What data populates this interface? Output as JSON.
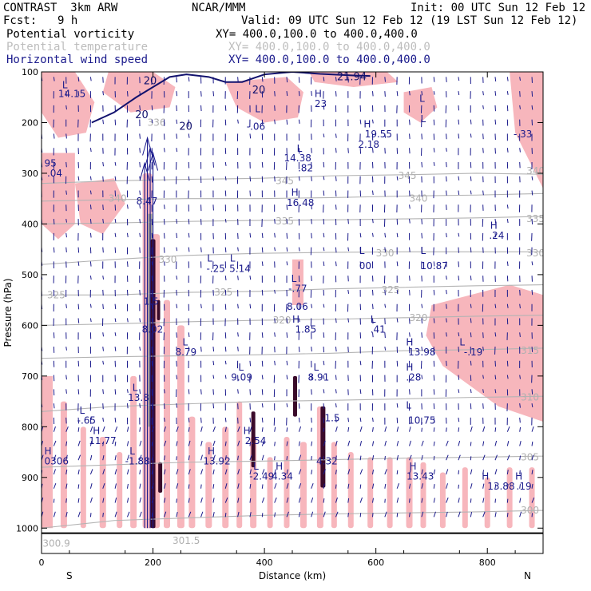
{
  "header": {
    "model": "CONTRAST  3km ARW",
    "org": "NCAR/MMM",
    "init": "Init: 00 UTC Sun 12 Feb 12",
    "fcst_label": "Fcst:",
    "fcst_value": "9 h",
    "valid": "Valid: 09 UTC Sun 12 Feb 12 (19 LST Sun 12 Feb 12)",
    "field1": "Potential vorticity",
    "field1_xy": "XY= 400.0,100.0 to 400.0,400.0",
    "field2": "Potential temperature",
    "field2_xy": "XY= 400.0,100.0 to 400.0,400.0",
    "field3": "Horizontal wind speed",
    "field3_xy": "XY= 400.0,100.0 to 400.0,400.0"
  },
  "colors": {
    "pv_fill": "#f7b6bc",
    "isentrope": "#b4b4b4",
    "wind_contour": "#12126e",
    "vectors": "#1a1a8c",
    "dark_pv": "#3a0a2a"
  },
  "chart_data": {
    "type": "cross-section",
    "title": "Potential vorticity / Potential temperature / Horizontal wind speed",
    "xlabel": "Distance (km)",
    "ylabel": "Pressure (hPa)",
    "xlim": [
      0,
      900
    ],
    "ylim": [
      1050,
      100
    ],
    "x_ticks": [
      0,
      200,
      400,
      600,
      800
    ],
    "x_tick_labels": [
      "0",
      "200",
      "400",
      "600",
      "800"
    ],
    "y_ticks": [
      100,
      200,
      300,
      400,
      500,
      600,
      700,
      800,
      900,
      1000
    ],
    "y_tick_labels": [
      "100",
      "200",
      "300",
      "400",
      "500",
      "600",
      "700",
      "800",
      "900",
      "1000"
    ],
    "left_end": "S",
    "right_end": "N",
    "isentropes": [
      {
        "theta": 345,
        "p": [
          320,
          315,
          312,
          310,
          305,
          303,
          300,
          302
        ]
      },
      {
        "theta": 340,
        "p": [
          355,
          352,
          350,
          350,
          348,
          345,
          343,
          340
        ]
      },
      {
        "theta": 335,
        "p": [
          400,
          398,
          395,
          393,
          392,
          390,
          388,
          385
        ]
      },
      {
        "theta": 330,
        "p": [
          480,
          470,
          462,
          458,
          456,
          455,
          455,
          455
        ]
      },
      {
        "theta": 325,
        "p": [
          540,
          540,
          535,
          533,
          528,
          525,
          522,
          520
        ]
      },
      {
        "theta": 320,
        "p": [
          600,
          597,
          593,
          590,
          588,
          585,
          582,
          580
        ]
      },
      {
        "theta": 315,
        "p": [
          665,
          662,
          660,
          658,
          655,
          650,
          648,
          645
        ]
      },
      {
        "theta": 310,
        "p": [
          770,
          760,
          755,
          750,
          748,
          745,
          742,
          740
        ]
      },
      {
        "theta": 305,
        "p": [
          880,
          875,
          870,
          868,
          865,
          862,
          860,
          858
        ]
      },
      {
        "theta": 300,
        "p": [
          1000,
          985,
          980,
          975,
          972,
          970,
          968,
          965
        ]
      }
    ],
    "isentrope_x": [
      0,
      130,
      260,
      390,
      520,
      650,
      780,
      900
    ],
    "isentrope_labels": [
      {
        "text": "345",
        "x": 420,
        "p": 315
      },
      {
        "text": "345",
        "x": 640,
        "p": 305
      },
      {
        "text": "340",
        "x": 120,
        "p": 350
      },
      {
        "text": "340",
        "x": 660,
        "p": 350
      },
      {
        "text": "340",
        "x": 870,
        "p": 295
      },
      {
        "text": "335",
        "x": 420,
        "p": 395
      },
      {
        "text": "335",
        "x": 870,
        "p": 390
      },
      {
        "text": "330",
        "x": 210,
        "p": 470
      },
      {
        "text": "330",
        "x": 600,
        "p": 458
      },
      {
        "text": "330",
        "x": 870,
        "p": 458
      },
      {
        "text": "325",
        "x": 10,
        "p": 540
      },
      {
        "text": "325",
        "x": 310,
        "p": 535
      },
      {
        "text": "325",
        "x": 610,
        "p": 530
      },
      {
        "text": "320",
        "x": 415,
        "p": 590
      },
      {
        "text": "320",
        "x": 660,
        "p": 585
      },
      {
        "text": "315",
        "x": 860,
        "p": 650
      },
      {
        "text": "310",
        "x": 860,
        "p": 742
      },
      {
        "text": "305",
        "x": 860,
        "p": 860
      },
      {
        "text": "300",
        "x": 860,
        "p": 965
      },
      {
        "text": "336",
        "x": 190,
        "p": 200
      },
      {
        "text": "300.9",
        "x": 2,
        "p": 1030
      },
      {
        "text": "301.5",
        "x": 235,
        "p": 1025
      }
    ],
    "wind_contours": [
      {
        "value": 20,
        "x": [
          90,
          130,
          170,
          200,
          230,
          260,
          300,
          330,
          360,
          400,
          450,
          500,
          560,
          590
        ],
        "p": [
          200,
          180,
          150,
          130,
          110,
          105,
          110,
          120,
          120,
          105,
          100,
          104,
          107,
          108
        ]
      }
    ],
    "wind_labels": [
      {
        "text": "20",
        "x": 183,
        "p": 118
      },
      {
        "text": "20",
        "x": 168,
        "p": 185
      },
      {
        "text": "20",
        "x": 247,
        "p": 208
      },
      {
        "text": "20",
        "x": 378,
        "p": 136
      },
      {
        "text": "21.94",
        "x": 530,
        "p": 110
      }
    ],
    "markers": [
      {
        "text": "L",
        "x": 37,
        "p": 126
      },
      {
        "text": "14.15",
        "x": 30,
        "p": 143
      },
      {
        "text": "H",
        "x": 490,
        "p": 143
      },
      {
        "text": "23",
        "x": 490,
        "p": 163
      },
      {
        "text": "L",
        "x": 383,
        "p": 173
      },
      {
        "text": "L",
        "x": 678,
        "p": 153
      },
      {
        "text": "L",
        "x": 680,
        "p": 193
      },
      {
        "text": "-.06",
        "x": 368,
        "p": 208
      },
      {
        "text": "H",
        "x": 578,
        "p": 203
      },
      {
        "text": "19.55",
        "x": 580,
        "p": 223
      },
      {
        "text": "2.18",
        "x": 568,
        "p": 243
      },
      {
        "text": "-.33",
        "x": 847,
        "p": 223
      },
      {
        "text": "L",
        "x": 458,
        "p": 251
      },
      {
        "text": "14.38",
        "x": 435,
        "p": 270
      },
      {
        "text": ".82",
        "x": 460,
        "p": 290
      },
      {
        "text": "95",
        "x": 5,
        "p": 280
      },
      {
        "text": ".04",
        "x": 10,
        "p": 300
      },
      {
        "text": "H",
        "x": 448,
        "p": 338
      },
      {
        "text": "16.48",
        "x": 440,
        "p": 358
      },
      {
        "text": "8.47",
        "x": 170,
        "p": 355
      },
      {
        "text": "H",
        "x": 805,
        "p": 403
      },
      {
        "text": ".24",
        "x": 803,
        "p": 423
      },
      {
        "text": "L",
        "x": 297,
        "p": 468
      },
      {
        "text": "L",
        "x": 338,
        "p": 468
      },
      {
        "text": "L",
        "x": 570,
        "p": 453
      },
      {
        "text": "L",
        "x": 680,
        "p": 453
      },
      {
        "text": "-.25",
        "x": 296,
        "p": 488
      },
      {
        "text": "5.14",
        "x": 337,
        "p": 488
      },
      {
        "text": "00",
        "x": 570,
        "p": 483
      },
      {
        "text": "10.87",
        "x": 680,
        "p": 483
      },
      {
        "text": "L",
        "x": 448,
        "p": 508
      },
      {
        "text": "-.77",
        "x": 443,
        "p": 528
      },
      {
        "text": "1.5",
        "x": 183,
        "p": 553
      },
      {
        "text": "8.06",
        "x": 440,
        "p": 563
      },
      {
        "text": "H",
        "x": 450,
        "p": 588
      },
      {
        "text": "1.85",
        "x": 455,
        "p": 608
      },
      {
        "text": "L",
        "x": 590,
        "p": 588
      },
      {
        "text": ".41",
        "x": 590,
        "p": 608
      },
      {
        "text": "8.02",
        "x": 180,
        "p": 608
      },
      {
        "text": "L",
        "x": 253,
        "p": 633
      },
      {
        "text": "H",
        "x": 654,
        "p": 633
      },
      {
        "text": "L",
        "x": 750,
        "p": 633
      },
      {
        "text": "8.79",
        "x": 240,
        "p": 653
      },
      {
        "text": "13.98",
        "x": 658,
        "p": 653
      },
      {
        "text": "-.19",
        "x": 758,
        "p": 653
      },
      {
        "text": "L",
        "x": 353,
        "p": 683
      },
      {
        "text": "L",
        "x": 488,
        "p": 683
      },
      {
        "text": "H",
        "x": 654,
        "p": 683
      },
      {
        "text": "9.09",
        "x": 340,
        "p": 703
      },
      {
        "text": "8.91",
        "x": 478,
        "p": 703
      },
      {
        "text": ".28",
        "x": 654,
        "p": 703
      },
      {
        "text": "L",
        "x": 163,
        "p": 723
      },
      {
        "text": "13.8",
        "x": 155,
        "p": 743
      },
      {
        "text": "L",
        "x": 654,
        "p": 758
      },
      {
        "text": "L",
        "x": 68,
        "p": 768
      },
      {
        "text": "1.5",
        "x": 508,
        "p": 783
      },
      {
        "text": "-.65",
        "x": 64,
        "p": 788
      },
      {
        "text": "10.75",
        "x": 658,
        "p": 788
      },
      {
        "text": "H",
        "x": 92,
        "p": 808
      },
      {
        "text": "H",
        "x": 362,
        "p": 808
      },
      {
        "text": "11.77",
        "x": 85,
        "p": 828
      },
      {
        "text": "2.54",
        "x": 365,
        "p": 828
      },
      {
        "text": "L",
        "x": 158,
        "p": 848
      },
      {
        "text": "H",
        "x": 298,
        "p": 848
      },
      {
        "text": "H",
        "x": 5,
        "p": 848
      },
      {
        "text": "-1.88",
        "x": 150,
        "p": 868
      },
      {
        "text": "13.92",
        "x": 290,
        "p": 868
      },
      {
        "text": "0306",
        "x": 5,
        "p": 868
      },
      {
        "text": "4.32",
        "x": 493,
        "p": 868
      },
      {
        "text": "L",
        "x": 380,
        "p": 878
      },
      {
        "text": "H",
        "x": 420,
        "p": 878
      },
      {
        "text": "H",
        "x": 660,
        "p": 878
      },
      {
        "text": "-2.49",
        "x": 373,
        "p": 898
      },
      {
        "text": "4.34",
        "x": 413,
        "p": 898
      },
      {
        "text": "13.43",
        "x": 655,
        "p": 898
      },
      {
        "text": "H",
        "x": 790,
        "p": 898
      },
      {
        "text": "H",
        "x": 850,
        "p": 898
      },
      {
        "text": "13.88",
        "x": 800,
        "p": 918
      },
      {
        "text": ".19",
        "x": 852,
        "p": 918
      }
    ],
    "pv_fill_regions": [
      {
        "x": [
          0,
          60,
          95,
          80,
          30,
          0
        ],
        "p": [
          100,
          100,
          160,
          220,
          230,
          180
        ]
      },
      {
        "x": [
          120,
          200,
          240,
          230,
          160,
          110
        ],
        "p": [
          100,
          100,
          130,
          170,
          180,
          140
        ]
      },
      {
        "x": [
          330,
          440,
          470,
          460,
          400,
          350
        ],
        "p": [
          120,
          110,
          140,
          190,
          200,
          170
        ]
      },
      {
        "x": [
          480,
          620,
          640,
          560,
          490
        ],
        "p": [
          100,
          100,
          120,
          130,
          120
        ]
      },
      {
        "x": [
          650,
          700,
          710,
          680,
          650
        ],
        "p": [
          140,
          130,
          170,
          200,
          180
        ]
      },
      {
        "x": [
          840,
          900,
          900,
          850
        ],
        "p": [
          100,
          100,
          330,
          220
        ]
      },
      {
        "x": [
          0,
          60,
          60,
          30,
          0
        ],
        "p": [
          260,
          260,
          400,
          430,
          400
        ]
      },
      {
        "x": [
          60,
          130,
          150,
          110,
          70
        ],
        "p": [
          320,
          310,
          360,
          420,
          400
        ]
      },
      {
        "x": [
          700,
          840,
          900,
          900,
          820,
          720,
          690
        ],
        "p": [
          560,
          520,
          540,
          790,
          760,
          680,
          620
        ]
      },
      {
        "x": [
          0,
          20,
          20,
          0
        ],
        "p": [
          700,
          700,
          1000,
          1000
        ]
      },
      {
        "x": [
          450,
          470,
          470,
          450
        ],
        "p": [
          470,
          470,
          560,
          560
        ]
      }
    ],
    "pv_columns": [
      {
        "x": 15,
        "p0": 700,
        "p1": 1000,
        "w": 6
      },
      {
        "x": 40,
        "p0": 750,
        "p1": 1000,
        "w": 8
      },
      {
        "x": 75,
        "p0": 800,
        "p1": 1000,
        "w": 7
      },
      {
        "x": 110,
        "p0": 820,
        "p1": 1000,
        "w": 8
      },
      {
        "x": 140,
        "p0": 850,
        "p1": 1000,
        "w": 7
      },
      {
        "x": 165,
        "p0": 700,
        "p1": 1000,
        "w": 8
      },
      {
        "x": 190,
        "p0": 300,
        "p1": 1000,
        "w": 12
      },
      {
        "x": 205,
        "p0": 420,
        "p1": 1000,
        "w": 10
      },
      {
        "x": 225,
        "p0": 550,
        "p1": 1000,
        "w": 8
      },
      {
        "x": 250,
        "p0": 600,
        "p1": 1000,
        "w": 9
      },
      {
        "x": 270,
        "p0": 780,
        "p1": 1000,
        "w": 8
      },
      {
        "x": 300,
        "p0": 830,
        "p1": 1000,
        "w": 8
      },
      {
        "x": 330,
        "p0": 800,
        "p1": 1000,
        "w": 8
      },
      {
        "x": 355,
        "p0": 750,
        "p1": 1000,
        "w": 7
      },
      {
        "x": 380,
        "p0": 820,
        "p1": 1000,
        "w": 8
      },
      {
        "x": 410,
        "p0": 860,
        "p1": 1000,
        "w": 7
      },
      {
        "x": 440,
        "p0": 820,
        "p1": 1000,
        "w": 7
      },
      {
        "x": 470,
        "p0": 830,
        "p1": 1000,
        "w": 8
      },
      {
        "x": 500,
        "p0": 760,
        "p1": 1000,
        "w": 8
      },
      {
        "x": 525,
        "p0": 830,
        "p1": 1000,
        "w": 7
      },
      {
        "x": 555,
        "p0": 850,
        "p1": 1000,
        "w": 7
      },
      {
        "x": 590,
        "p0": 860,
        "p1": 1000,
        "w": 7
      },
      {
        "x": 625,
        "p0": 860,
        "p1": 1000,
        "w": 7
      },
      {
        "x": 660,
        "p0": 860,
        "p1": 1000,
        "w": 8
      },
      {
        "x": 685,
        "p0": 870,
        "p1": 1000,
        "w": 7
      },
      {
        "x": 720,
        "p0": 890,
        "p1": 1000,
        "w": 7
      },
      {
        "x": 760,
        "p0": 880,
        "p1": 1000,
        "w": 7
      },
      {
        "x": 800,
        "p0": 900,
        "p1": 1000,
        "w": 7
      },
      {
        "x": 840,
        "p0": 880,
        "p1": 1000,
        "w": 7
      },
      {
        "x": 880,
        "p0": 880,
        "p1": 1000,
        "w": 7
      }
    ],
    "dark_pv_columns": [
      {
        "x": 200,
        "p0": 430,
        "p1": 1000,
        "w": 6
      },
      {
        "x": 210,
        "p0": 550,
        "p1": 590,
        "w": 4
      },
      {
        "x": 213,
        "p0": 870,
        "p1": 930,
        "w": 5
      },
      {
        "x": 380,
        "p0": 770,
        "p1": 880,
        "w": 5
      },
      {
        "x": 455,
        "p0": 700,
        "p1": 780,
        "w": 5
      },
      {
        "x": 505,
        "p0": 760,
        "p1": 920,
        "w": 6
      }
    ],
    "gray_columns": [
      {
        "x": 195,
        "p0": 380,
        "p1": 800,
        "w": 5
      }
    ],
    "jet_arrows": [
      {
        "x": 190,
        "p0": 230,
        "p1": 1000
      },
      {
        "x": 195,
        "p0": 250,
        "p1": 1000
      },
      {
        "x": 200,
        "p0": 260,
        "p1": 1000
      },
      {
        "x": 185,
        "p0": 280,
        "p1": 1000
      }
    ],
    "surface_p": 1010
  }
}
